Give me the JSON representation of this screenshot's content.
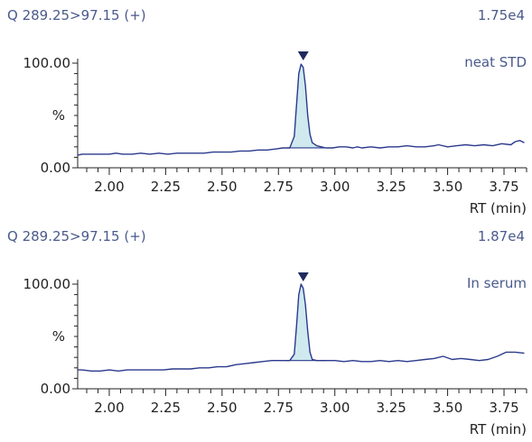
{
  "chart_data": [
    {
      "type": "line",
      "channel": "Q 289.25>97.15 (+)",
      "intensity": "1.75e4",
      "annotation": "neat STD",
      "xlabel": "RT (min)",
      "ylabel": "%",
      "y_ticks": [
        "0.00",
        "100.00"
      ],
      "x_ticks": [
        "2.00",
        "2.25",
        "2.50",
        "2.75",
        "3.00",
        "3.25",
        "3.50",
        "3.75"
      ],
      "xlim": [
        1.86,
        3.85
      ],
      "ylim": [
        0,
        100
      ],
      "peak_rt": 2.86,
      "peak_fill": [
        2.79,
        2.96
      ],
      "line_color": "#2b3a8c",
      "fill_color": "#cfe9ef",
      "x": [
        1.86,
        1.88,
        1.92,
        1.96,
        2.0,
        2.03,
        2.06,
        2.1,
        2.14,
        2.18,
        2.22,
        2.26,
        2.3,
        2.34,
        2.38,
        2.42,
        2.46,
        2.5,
        2.54,
        2.58,
        2.62,
        2.66,
        2.7,
        2.74,
        2.77,
        2.79,
        2.8,
        2.82,
        2.83,
        2.84,
        2.85,
        2.86,
        2.87,
        2.88,
        2.89,
        2.9,
        2.92,
        2.94,
        2.96,
        2.99,
        3.02,
        3.05,
        3.08,
        3.1,
        3.12,
        3.16,
        3.2,
        3.24,
        3.28,
        3.32,
        3.36,
        3.4,
        3.44,
        3.46,
        3.5,
        3.54,
        3.58,
        3.62,
        3.66,
        3.7,
        3.74,
        3.78,
        3.8,
        3.82,
        3.84
      ],
      "y": [
        12,
        13,
        13,
        13,
        13,
        14,
        13,
        13,
        14,
        13,
        14,
        13,
        14,
        14,
        14,
        14,
        15,
        15,
        15,
        16,
        16,
        17,
        17,
        18,
        19,
        19,
        19,
        30,
        60,
        90,
        99,
        96,
        78,
        50,
        32,
        24,
        21,
        20,
        19,
        19,
        20,
        20,
        19,
        20,
        19,
        20,
        19,
        20,
        20,
        21,
        20,
        20,
        21,
        22,
        20,
        21,
        22,
        21,
        22,
        21,
        23,
        22,
        25,
        26,
        24
      ]
    },
    {
      "type": "line",
      "channel": "Q 289.25>97.15 (+)",
      "intensity": "1.87e4",
      "annotation": "In serum",
      "xlabel": "RT (min)",
      "ylabel": "%",
      "y_ticks": [
        "0.00",
        "100.00"
      ],
      "x_ticks": [
        "2.00",
        "2.25",
        "2.50",
        "2.75",
        "3.00",
        "3.25",
        "3.50",
        "3.75"
      ],
      "xlim": [
        1.86,
        3.85
      ],
      "ylim": [
        0,
        100
      ],
      "peak_rt": 2.86,
      "peak_fill": [
        2.76,
        2.96
      ],
      "line_color": "#2b3a8c",
      "fill_color": "#cfe9ef",
      "x": [
        1.86,
        1.88,
        1.92,
        1.96,
        2.0,
        2.04,
        2.08,
        2.12,
        2.16,
        2.2,
        2.24,
        2.28,
        2.32,
        2.36,
        2.4,
        2.44,
        2.48,
        2.52,
        2.56,
        2.6,
        2.64,
        2.68,
        2.72,
        2.75,
        2.78,
        2.8,
        2.82,
        2.83,
        2.84,
        2.85,
        2.86,
        2.87,
        2.88,
        2.89,
        2.9,
        2.92,
        2.94,
        2.96,
        3.0,
        3.04,
        3.08,
        3.12,
        3.16,
        3.2,
        3.24,
        3.28,
        3.32,
        3.36,
        3.4,
        3.44,
        3.48,
        3.52,
        3.56,
        3.6,
        3.64,
        3.68,
        3.72,
        3.76,
        3.8,
        3.84
      ],
      "y": [
        18,
        18,
        17,
        17,
        18,
        17,
        18,
        18,
        18,
        18,
        18,
        19,
        19,
        19,
        20,
        20,
        21,
        21,
        23,
        24,
        25,
        26,
        27,
        27,
        27,
        27,
        33,
        60,
        90,
        100,
        96,
        80,
        55,
        35,
        28,
        27,
        27,
        27,
        27,
        26,
        27,
        26,
        26,
        27,
        26,
        27,
        26,
        27,
        28,
        29,
        31,
        28,
        29,
        28,
        27,
        28,
        31,
        35,
        35,
        34
      ]
    }
  ]
}
